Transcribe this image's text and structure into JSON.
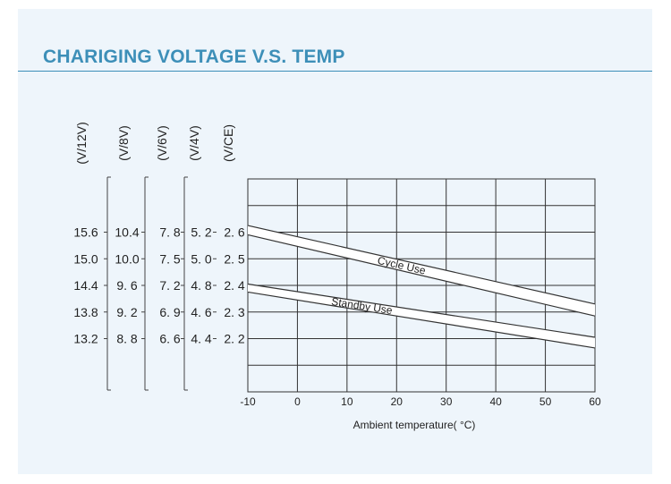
{
  "title": "CHARIGING VOLTAGE V.S. TEMP",
  "chart_data": {
    "type": "line",
    "xlabel": "Ambient temperature( °C)",
    "xlim": [
      -10,
      60
    ],
    "x_ticks": [
      "-10",
      "0",
      "10",
      "20",
      "30",
      "40",
      "50",
      "60"
    ],
    "ylim_ce": [
      2.0,
      2.8
    ],
    "grid": true,
    "y_axes": [
      {
        "unit": "(V/12V)",
        "ticks": [
          "15.6",
          "15.0",
          "14.4",
          "13.8",
          "13.2"
        ]
      },
      {
        "unit": "(V/8V)",
        "ticks": [
          "10.4",
          "10.0",
          "9. 6",
          "9. 2",
          "8. 8"
        ]
      },
      {
        "unit": "(V/6V)",
        "ticks": [
          "7. 8",
          "7. 5",
          "7. 2",
          "6. 9",
          "6. 6"
        ]
      },
      {
        "unit": "(V/4V)",
        "ticks": [
          "5. 2",
          "5. 0",
          "4. 8",
          "4. 6",
          "4. 4"
        ]
      },
      {
        "unit": "(V/CE)",
        "ticks": [
          "2. 6",
          "2. 5",
          "2. 4",
          "2. 3",
          "2. 2"
        ]
      }
    ],
    "y_tick_values_ce": [
      2.6,
      2.5,
      2.4,
      2.3,
      2.2
    ],
    "series": [
      {
        "name": "Cycle Use",
        "x": [
          -10,
          60
        ],
        "upper": [
          2.625,
          2.33
        ],
        "lower": [
          2.59,
          2.285
        ]
      },
      {
        "name": "Standby Use",
        "x": [
          -10,
          60
        ],
        "upper": [
          2.405,
          2.205
        ],
        "lower": [
          2.375,
          2.165
        ]
      }
    ]
  }
}
